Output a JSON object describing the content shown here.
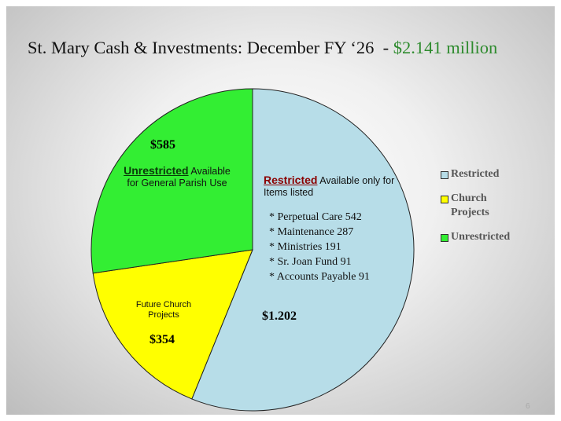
{
  "chart_data": {
    "type": "pie",
    "title": "St. Mary Cash & Investments: December FY ‘26  - ",
    "title_highlight": "$2.141 million",
    "categories": [
      "Restricted",
      "Church Projects",
      "Unrestricted"
    ],
    "values": [
      1202,
      354,
      585
    ],
    "value_labels": [
      "$1.202",
      "$354",
      "$585"
    ],
    "colors": [
      "#b7dde8",
      "#ffff00",
      "#33ee33"
    ],
    "legend": "right",
    "annotations": {
      "restricted": {
        "heading": "Restricted",
        "text": "Available only for Items listed",
        "items": [
          "* Perpetual Care 542",
          "* Maintenance 287",
          "* Ministries 191",
          "* Sr. Joan Fund 91",
          "* Accounts Payable 91"
        ]
      },
      "unrestricted": {
        "heading": "Unrestricted",
        "text": "Available for General Parish Use"
      },
      "church": "Future Church Projects"
    },
    "page_number": "6"
  }
}
